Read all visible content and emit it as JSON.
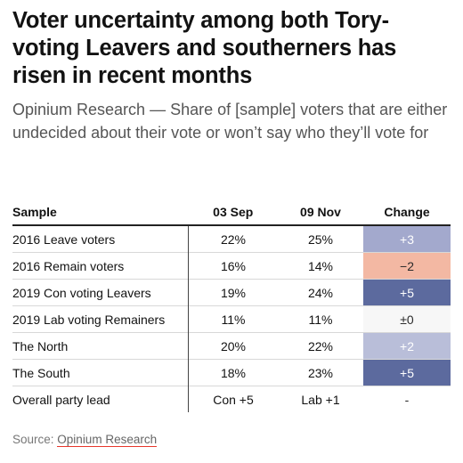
{
  "title": "Voter uncertainty among both Tory-voting Leavers and southerners has risen in recent months",
  "subtitle": "Opinium Research — Share of [sample] voters that are either undecided about their vote or won’t say who they’ll vote for",
  "source": {
    "label": "Source:",
    "link": "Opinium Research"
  },
  "chart_data": {
    "type": "table",
    "columns": [
      "Sample",
      "03 Sep",
      "09 Nov",
      "Change"
    ],
    "rows": [
      {
        "sample": "2016 Leave voters",
        "sep": "22%",
        "nov": "25%",
        "change": "+3",
        "change_value": 3,
        "change_color": "#a3a9cd",
        "change_text_color": "#ffffff"
      },
      {
        "sample": "2016 Remain voters",
        "sep": "16%",
        "nov": "14%",
        "change": "−2",
        "change_value": -2,
        "change_color": "#f3b8a3",
        "change_text_color": "#2b2b2b"
      },
      {
        "sample": "2019 Con voting Leavers",
        "sep": "19%",
        "nov": "24%",
        "change": "+5",
        "change_value": 5,
        "change_color": "#5c6a9e",
        "change_text_color": "#ffffff"
      },
      {
        "sample": "2019 Lab voting Remainers",
        "sep": "11%",
        "nov": "11%",
        "change": "±0",
        "change_value": 0,
        "change_color": "#f7f7f7",
        "change_text_color": "#2b2b2b"
      },
      {
        "sample": "The North",
        "sep": "20%",
        "nov": "22%",
        "change": "+2",
        "change_value": 2,
        "change_color": "#b9bed9",
        "change_text_color": "#ffffff"
      },
      {
        "sample": "The South",
        "sep": "18%",
        "nov": "23%",
        "change": "+5",
        "change_value": 5,
        "change_color": "#5c6a9e",
        "change_text_color": "#ffffff"
      },
      {
        "sample": "Overall party lead",
        "sep": "Con +5",
        "nov": "Lab +1",
        "change": "-",
        "change_value": null,
        "change_color": "#ffffff",
        "change_text_color": "#2b2b2b"
      }
    ]
  }
}
